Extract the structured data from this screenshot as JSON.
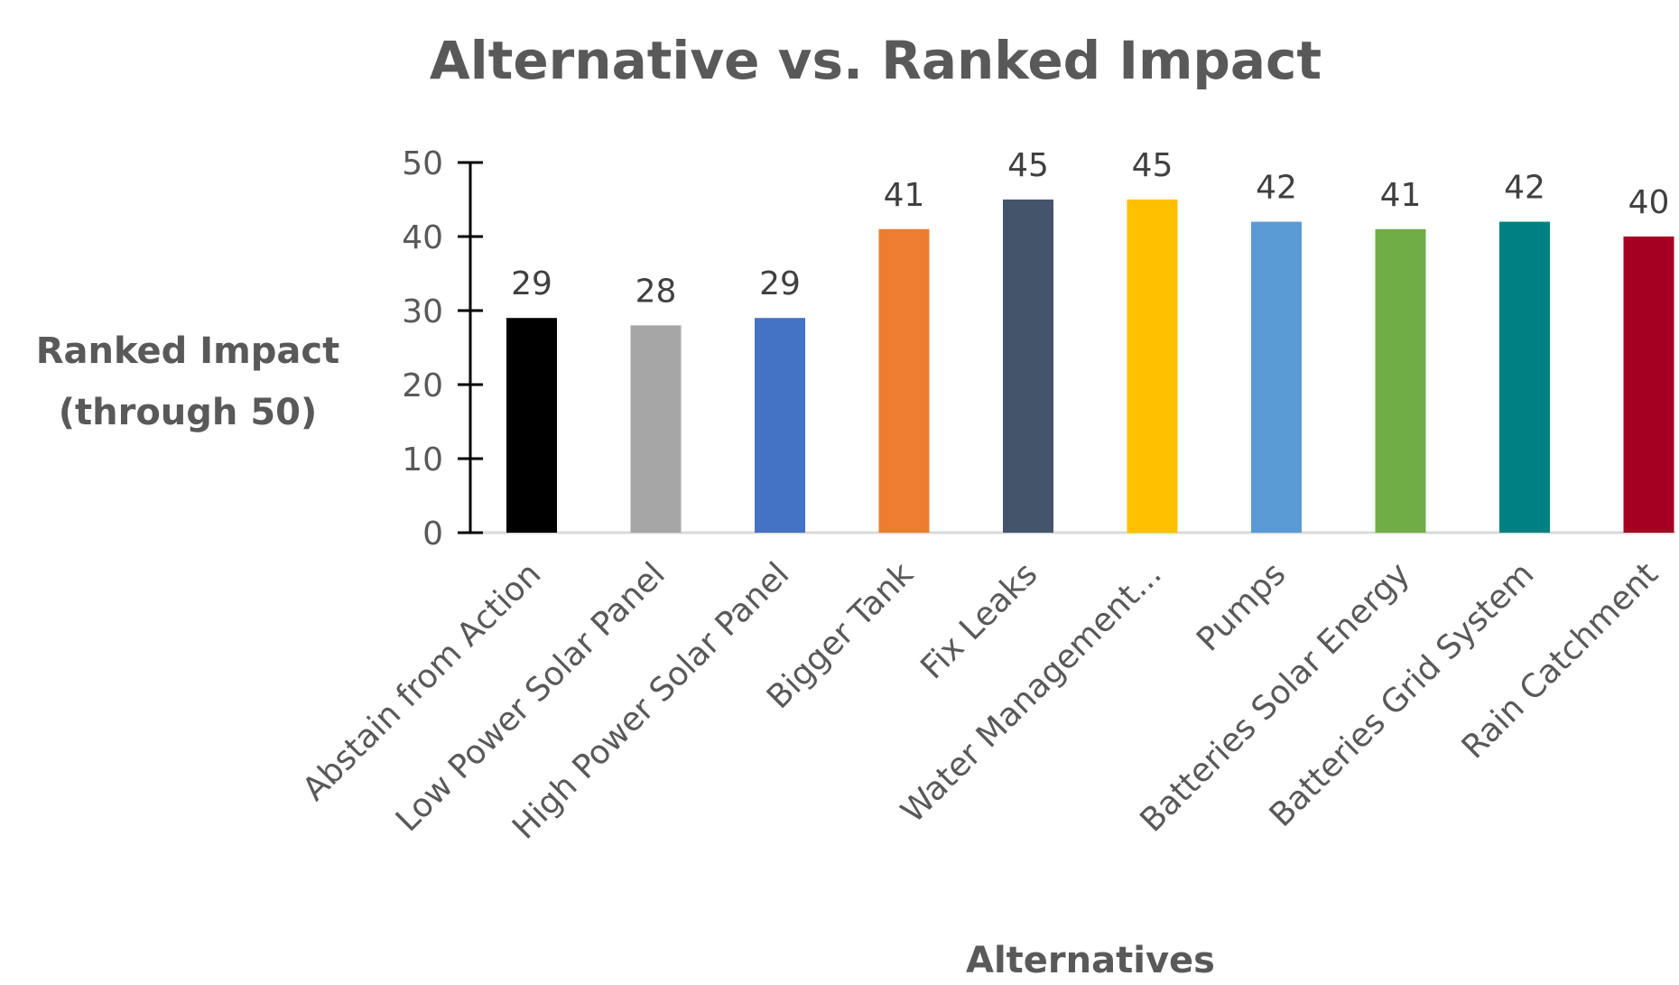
{
  "chart_data": {
    "type": "bar",
    "title": "Alternative vs. Ranked Impact",
    "xlabel": "Alternatives",
    "ylabel_lines": [
      "Ranked Impact",
      "(through 50)"
    ],
    "ylim": [
      0,
      50
    ],
    "yticks": [
      0,
      10,
      20,
      30,
      40,
      50
    ],
    "grid": false,
    "categories": [
      "Abstain from Action",
      "Low Power Solar Panel",
      "High Power Solar Panel",
      "Bigger Tank",
      "Fix Leaks",
      "Water Management...",
      "Pumps",
      "Batteries Solar Energy",
      "Batteries Grid System",
      "Rain Catchment"
    ],
    "values": [
      29,
      28,
      29,
      41,
      45,
      45,
      42,
      41,
      42,
      40
    ],
    "colors": [
      "#000000",
      "#a6a6a6",
      "#4472c4",
      "#ed7d31",
      "#44546a",
      "#ffc000",
      "#5b9bd5",
      "#70ad47",
      "#008080",
      "#a50021"
    ]
  }
}
